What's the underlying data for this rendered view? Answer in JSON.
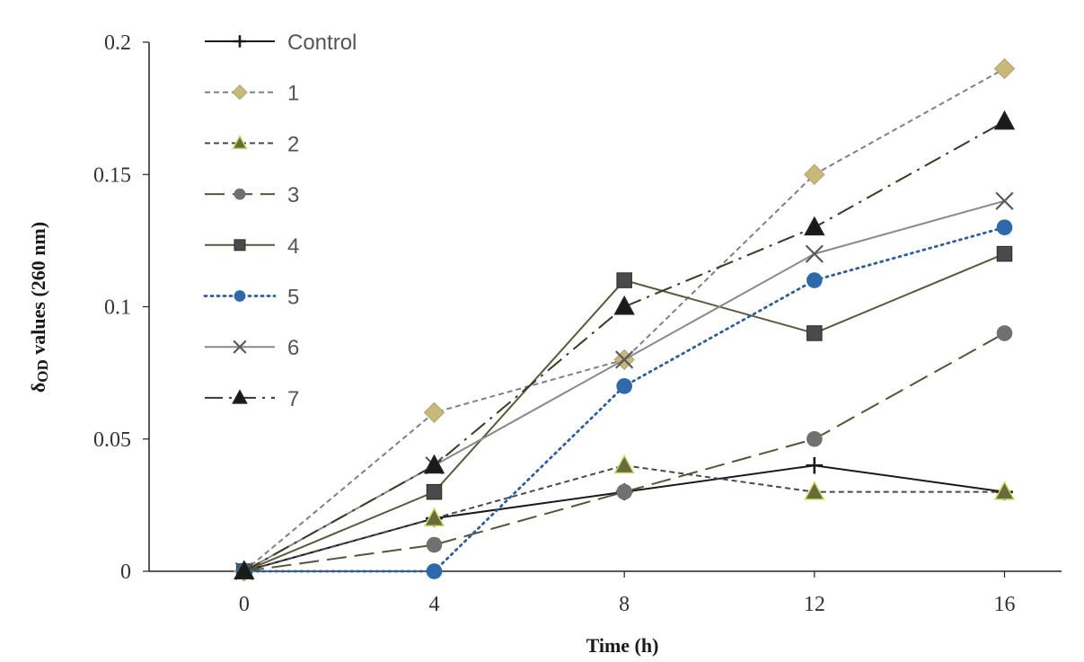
{
  "chart_data": {
    "type": "line",
    "title": "",
    "xlabel": "Time (h)",
    "ylabel_main": "δ",
    "ylabel_sub": "OD",
    "ylabel_rest": " values (260 nm)",
    "x": [
      0,
      4,
      8,
      12,
      16
    ],
    "x_tick_labels": [
      "0",
      "4",
      "8",
      "12",
      "16"
    ],
    "y_ticks": [
      0,
      0.05,
      0.1,
      0.15,
      0.2
    ],
    "y_tick_labels": [
      "0",
      "0.05",
      "0.1",
      "0.15",
      "0.2"
    ],
    "xlim": [
      -2,
      17.2
    ],
    "ylim": [
      0,
      0.2
    ],
    "grid": false,
    "legend_position": "top-left",
    "series": [
      {
        "name": "Control",
        "values": [
          0,
          0.02,
          0.03,
          0.04,
          0.03
        ],
        "color": "#1a1a1a",
        "dash": "solid",
        "marker": "plus",
        "marker_fill": "#1a1a1a"
      },
      {
        "name": "1",
        "values": [
          0,
          0.06,
          0.08,
          0.15,
          0.19
        ],
        "color": "#808080",
        "dash": "short-dash",
        "marker": "diamond",
        "marker_fill": "#c8b97a"
      },
      {
        "name": "2",
        "values": [
          0,
          0.02,
          0.04,
          0.03,
          0.03
        ],
        "color": "#4a4a4a",
        "dash": "short-dash",
        "marker": "triangle",
        "marker_fill": "#6b6b3a"
      },
      {
        "name": "3",
        "values": [
          0,
          0.01,
          0.03,
          0.05,
          0.09
        ],
        "color": "#555538",
        "dash": "long-dash",
        "marker": "circle",
        "marker_fill": "#707070"
      },
      {
        "name": "4",
        "values": [
          0,
          0.03,
          0.11,
          0.09,
          0.12
        ],
        "color": "#5a5a3c",
        "dash": "solid",
        "marker": "square",
        "marker_fill": "#4a4a4a"
      },
      {
        "name": "5",
        "values": [
          0,
          0,
          0.07,
          0.11,
          0.13
        ],
        "color": "#2e5f9a",
        "dash": "dotted",
        "marker": "circle",
        "marker_fill": "#2e6aaa"
      },
      {
        "name": "6",
        "values": [
          0,
          0.04,
          0.08,
          0.12,
          0.14
        ],
        "color": "#8a8a8a",
        "dash": "solid",
        "marker": "x",
        "marker_fill": "#5a5a5a"
      },
      {
        "name": "7",
        "values": [
          0,
          0.04,
          0.1,
          0.13,
          0.17
        ],
        "color": "#3a3a2a",
        "dash": "dash-dot",
        "marker": "triangle",
        "marker_fill": "#1a1a1a"
      }
    ]
  }
}
